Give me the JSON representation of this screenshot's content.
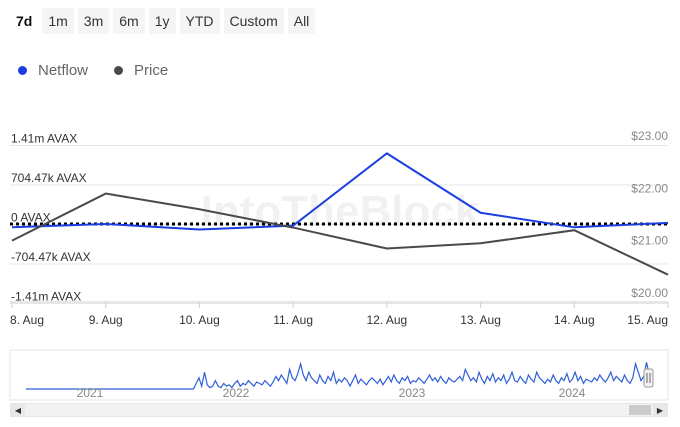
{
  "range_buttons": [
    {
      "label": "7d",
      "active": true
    },
    {
      "label": "1m"
    },
    {
      "label": "3m"
    },
    {
      "label": "6m"
    },
    {
      "label": "1y"
    },
    {
      "label": "YTD"
    },
    {
      "label": "Custom"
    },
    {
      "label": "All"
    }
  ],
  "colors": {
    "netflow": "#1a3ee0",
    "price": "#4a4a4a",
    "navigator_line": "#2f5fd8"
  },
  "watermark": "IntoTheBlock",
  "chart_data": {
    "type": "line",
    "x": [
      "8. Aug",
      "9. Aug",
      "10. Aug",
      "11. Aug",
      "12. Aug",
      "13. Aug",
      "14. Aug",
      "15. Aug"
    ],
    "series": [
      {
        "name": "Netflow",
        "axis": "left",
        "values": [
          -50000,
          10000,
          -90000,
          -20000,
          1270000,
          210000,
          -50000,
          30000
        ]
      },
      {
        "name": "Price",
        "axis": "right",
        "values": [
          21.0,
          21.9,
          21.6,
          21.25,
          20.85,
          20.95,
          21.2,
          20.35
        ]
      }
    ],
    "y_left_ticks": [
      "1.41m AVAX",
      "704.47k AVAX",
      "0 AVAX",
      "-704.47k AVAX",
      "-1.41m AVAX"
    ],
    "y_left_range": [
      -1410000,
      1410000
    ],
    "y_right_ticks": [
      "$23.00",
      "$22.00",
      "$21.00",
      "$20.00"
    ],
    "y_right_range": [
      20.0,
      23.0
    ],
    "zero_line": "dotted",
    "grid": true,
    "legend": "top-left"
  },
  "navigator": {
    "years": [
      "2021",
      "2022",
      "2023",
      "2024"
    ],
    "values": [
      0,
      0,
      0,
      0,
      0,
      0,
      0,
      0,
      0,
      0,
      0,
      0,
      0,
      0,
      0,
      0,
      0,
      0,
      0,
      0,
      0,
      0,
      0,
      0,
      0,
      0,
      0,
      0,
      0,
      0,
      0,
      0,
      0,
      0,
      0,
      0,
      0,
      0,
      0,
      0,
      0,
      0,
      0,
      0,
      0,
      0,
      0,
      0,
      0,
      0,
      0,
      0,
      0,
      0,
      0,
      0,
      0,
      0,
      0,
      0,
      0,
      0,
      0.2,
      0.4,
      0.1,
      0.6,
      0.15,
      0.05,
      0.1,
      0.3,
      0.1,
      0.05,
      0.2,
      0.1,
      0.15,
      0.05,
      0.2,
      0.3,
      0.1,
      0.2,
      0.15,
      0.3,
      0.2,
      0.1,
      0.25,
      0.2,
      0.15,
      0.3,
      0.2,
      0.1,
      0.25,
      0.45,
      0.3,
      0.5,
      0.35,
      0.2,
      0.7,
      0.4,
      0.3,
      0.55,
      0.9,
      0.5,
      0.3,
      0.6,
      0.4,
      0.3,
      0.2,
      0.5,
      0.3,
      0.2,
      0.45,
      0.3,
      0.6,
      0.2,
      0.35,
      0.25,
      0.4,
      0.3,
      0.1,
      0.3,
      0.5,
      0.2,
      0.35,
      0.25,
      0.15,
      0.3,
      0.4,
      0.3,
      0.2,
      0.35,
      0.15,
      0.3,
      0.45,
      0.25,
      0.5,
      0.3,
      0.2,
      0.4,
      0.3,
      0.45,
      0.2,
      0.3,
      0.25,
      0.4,
      0.3,
      0.2,
      0.35,
      0.5,
      0.3,
      0.4,
      0.25,
      0.45,
      0.3,
      0.2,
      0.4,
      0.3,
      0.25,
      0.35,
      0.45,
      0.3,
      0.7,
      0.5,
      0.3,
      0.4,
      0.25,
      0.6,
      0.35,
      0.2,
      0.45,
      0.3,
      0.55,
      0.25,
      0.4,
      0.3,
      0.5,
      0.2,
      0.35,
      0.6,
      0.3,
      0.25,
      0.45,
      0.3,
      0.2,
      0.5,
      0.35,
      0.25,
      0.6,
      0.4,
      0.3,
      0.2,
      0.35,
      0.25,
      0.5,
      0.3,
      0.2,
      0.4,
      0.3,
      0.55,
      0.25,
      0.35,
      0.6,
      0.3,
      0.45,
      0.2,
      0.35,
      0.3,
      0.25,
      0.4,
      0.3,
      0.5,
      0.35,
      0.25,
      0.4,
      0.6,
      0.3,
      0.45,
      0.35,
      0.25,
      0.5,
      0.3,
      0.2,
      0.4,
      0.9,
      0.6,
      0.3,
      0.45,
      0.95,
      0.5,
      0.4
    ]
  }
}
